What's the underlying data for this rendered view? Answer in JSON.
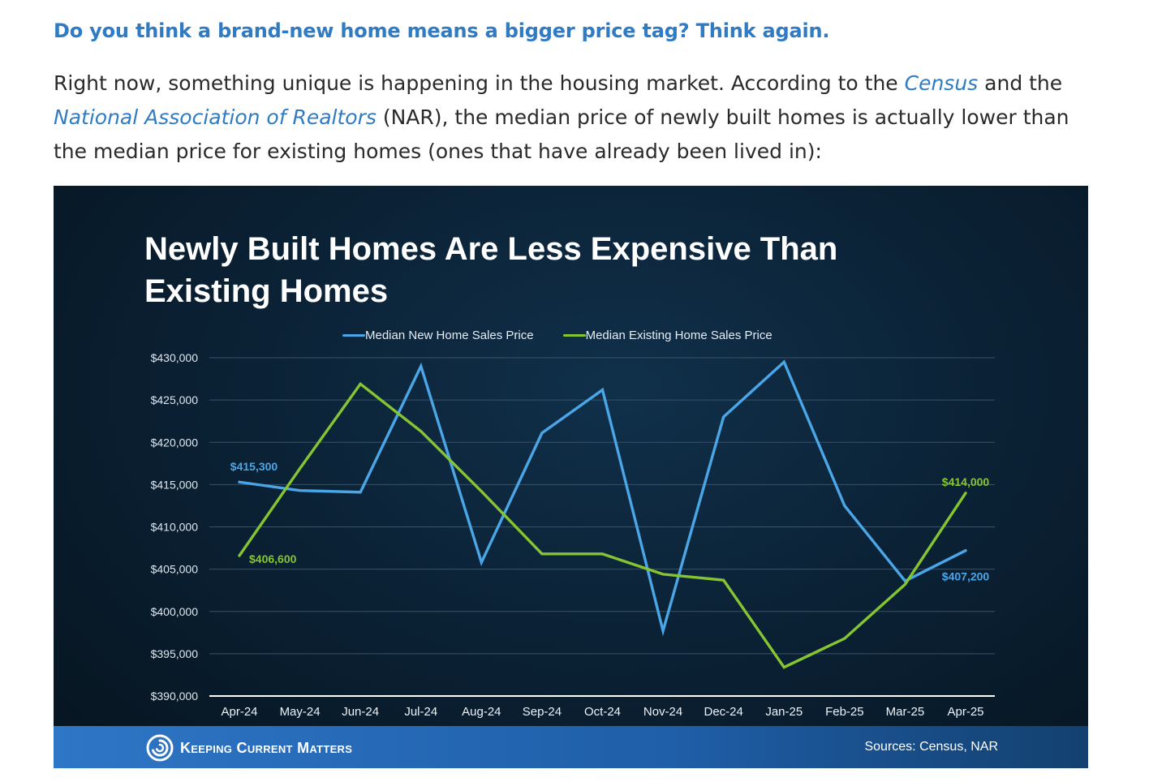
{
  "article": {
    "headline": "Do you think a brand-new home means a bigger price tag? Think again.",
    "para_part1": "Right now, something unique is happening in the housing market. According to the ",
    "link_census": "Census",
    "para_part2": " and the ",
    "link_nar": "National Association of Realtors",
    "para_part3": " (NAR), the median price of newly built homes is actually lower than the median price for existing homes (ones that have already been lived in):",
    "link_color": "#2f7bc4"
  },
  "footer": {
    "brand": "Keeping Current Matters",
    "logo_icon": "swirl-logo-icon",
    "sources": "Sources: Census, NAR"
  },
  "chart_data": {
    "type": "line",
    "title": "Newly Built Homes Are Less Expensive Than Existing Homes",
    "categories": [
      "Apr-24",
      "May-24",
      "Jun-24",
      "Jul-24",
      "Aug-24",
      "Sep-24",
      "Oct-24",
      "Nov-24",
      "Dec-24",
      "Jan-25",
      "Feb-25",
      "Mar-25",
      "Apr-25"
    ],
    "ylim": [
      390000,
      430000
    ],
    "yticks": [
      390000,
      395000,
      400000,
      405000,
      410000,
      415000,
      420000,
      425000,
      430000
    ],
    "ytick_labels": [
      "$390,000",
      "$395,000",
      "$400,000",
      "$405,000",
      "$410,000",
      "$415,000",
      "$420,000",
      "$425,000",
      "$430,000"
    ],
    "grid": true,
    "legend_position": "top-center",
    "series": [
      {
        "name": "Median New Home Sales Price",
        "color": "#4aa6e6",
        "values": [
          415300,
          414300,
          414100,
          429000,
          405800,
          421100,
          426200,
          397700,
          423000,
          429500,
          412500,
          403600,
          407200
        ]
      },
      {
        "name": "Median Existing Home Sales Price",
        "color": "#86c532",
        "values": [
          406600,
          416900,
          426900,
          421300,
          414200,
          406800,
          406800,
          404400,
          403700,
          393400,
          396800,
          403200,
          414000
        ]
      }
    ],
    "annotations": [
      {
        "series": 0,
        "index": 0,
        "text": "$415,300"
      },
      {
        "series": 1,
        "index": 0,
        "text": "$406,600"
      },
      {
        "series": 1,
        "index": 12,
        "text": "$414,000"
      },
      {
        "series": 0,
        "index": 12,
        "text": "$407,200"
      }
    ]
  }
}
